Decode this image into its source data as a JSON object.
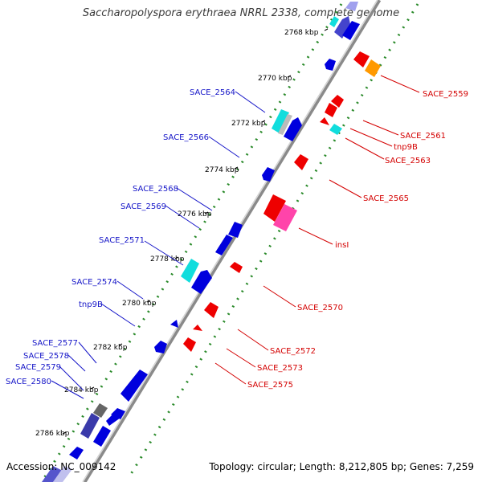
{
  "title": "Saccharopolyspora erythraea NRRL 2338, complete genome",
  "accession": "Accession: NC_009142",
  "topology": "Topology: circular; Length: 8,212,805 bp; Genes: 7,259",
  "colors": {
    "forward_cds": "#0000dd",
    "reverse_cds": "#ee0000",
    "trna": "#11dddd",
    "pseudo": "#ff44aa",
    "other": "#ff9900",
    "backbone": "#888888",
    "left_label": "#1515c8",
    "right_label": "#d40000",
    "gc_dots": "#2a8a2a"
  },
  "ticks": [
    "2768 kbp",
    "2770 kbp",
    "2772 kbp",
    "2774 kbp",
    "2776 kbp",
    "2778 kbp",
    "2780 kbp",
    "2782 kbp",
    "2784 kbp",
    "2786 kbp"
  ],
  "left_labels": [
    "SACE_2564",
    "SACE_2566",
    "SACE_2568",
    "SACE_2569",
    "SACE_2571",
    "SACE_2574",
    "tnp9B",
    "SACE_2577",
    "SACE_2578",
    "SACE_2579",
    "SACE_2580"
  ],
  "right_labels": [
    "SACE_2559",
    "SACE_2561",
    "tnp9B",
    "SACE_2563",
    "SACE_2565",
    "insI",
    "SACE_2570",
    "SACE_2572",
    "SACE_2573",
    "SACE_2575"
  ]
}
